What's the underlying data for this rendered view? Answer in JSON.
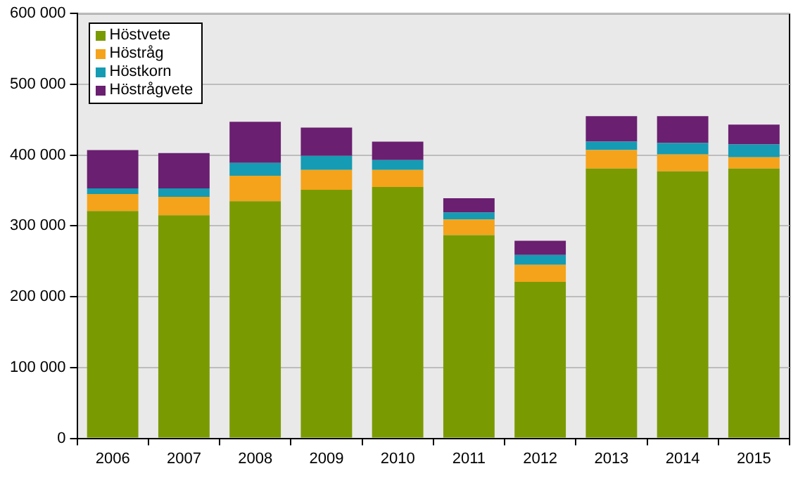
{
  "chart_data": {
    "type": "bar",
    "stacked": true,
    "categories": [
      "2006",
      "2007",
      "2008",
      "2009",
      "2010",
      "2011",
      "2012",
      "2013",
      "2014",
      "2015"
    ],
    "series": [
      {
        "name": "Höstvete",
        "color": "#7a9a01",
        "values": [
          321000,
          315000,
          335000,
          351000,
          355000,
          287000,
          221000,
          381000,
          377000,
          381000
        ]
      },
      {
        "name": "Höstråg",
        "color": "#f5a31a",
        "values": [
          24000,
          26000,
          36000,
          28000,
          24000,
          22000,
          24000,
          26000,
          24000,
          16000
        ]
      },
      {
        "name": "Höstkorn",
        "color": "#159bb3",
        "values": [
          8000,
          12000,
          18000,
          20000,
          14000,
          10000,
          14000,
          12000,
          16000,
          18000
        ]
      },
      {
        "name": "Höstrågvete",
        "color": "#6a1f70",
        "values": [
          54000,
          50000,
          58000,
          40000,
          26000,
          20000,
          20000,
          36000,
          38000,
          28000
        ]
      }
    ],
    "ylim": [
      0,
      600000
    ],
    "yticks": [
      {
        "value": 0,
        "label": "0"
      },
      {
        "value": 100000,
        "label": "100 000"
      },
      {
        "value": 200000,
        "label": "200 000"
      },
      {
        "value": 300000,
        "label": "300 000"
      },
      {
        "value": 400000,
        "label": "400 000"
      },
      {
        "value": 500000,
        "label": "500 000"
      },
      {
        "value": 600000,
        "label": "600 000"
      }
    ],
    "grid": "y",
    "legend": "top left"
  }
}
